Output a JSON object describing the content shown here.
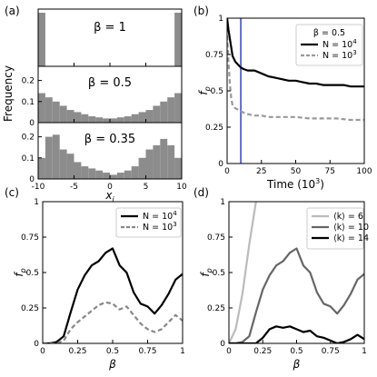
{
  "panel_labels": [
    "(a)",
    "(b)",
    "(c)",
    "(d)"
  ],
  "chart_data": [
    {
      "panel": "(a)",
      "type": "bar",
      "ylabel": "Frequency",
      "xlabel": "x",
      "xlabel_sub": "i",
      "xlim": [
        -10,
        10
      ],
      "xticks": [
        "-10",
        "-5",
        "0",
        "5",
        "10"
      ],
      "grid": false,
      "subplots": [
        {
          "annotation": "β = 1",
          "ylim": [
            0,
            0.5
          ],
          "yticks": [],
          "bins": [
            -10,
            -9,
            9,
            10
          ],
          "values": [
            0.5,
            0.0,
            0.5
          ]
        },
        {
          "annotation": "β = 0.5",
          "ylim": [
            0,
            0.25
          ],
          "yticks": [
            "0",
            "0.1",
            "0.2"
          ],
          "bins": [
            -10,
            -9,
            -8,
            -7,
            -6,
            -5,
            -4,
            -3,
            -2,
            -1,
            0,
            1,
            2,
            3,
            4,
            5,
            6,
            7,
            8,
            9,
            10
          ],
          "values": [
            0.14,
            0.12,
            0.1,
            0.08,
            0.06,
            0.05,
            0.04,
            0.03,
            0.025,
            0.02,
            0.02,
            0.025,
            0.03,
            0.04,
            0.05,
            0.06,
            0.08,
            0.1,
            0.12,
            0.14
          ]
        },
        {
          "annotation": "β = 0.35",
          "ylim": [
            0,
            0.25
          ],
          "yticks": [
            "0",
            "0.1",
            "0.2"
          ],
          "bins": [
            -10,
            -9,
            -8,
            -7,
            -6,
            -5,
            -4,
            -3,
            -2,
            -1,
            0,
            1,
            2,
            3,
            4,
            5,
            6,
            7,
            8,
            9,
            10
          ],
          "values": [
            0.1,
            0.2,
            0.21,
            0.14,
            0.12,
            0.08,
            0.06,
            0.05,
            0.04,
            0.03,
            0.02,
            0.03,
            0.04,
            0.06,
            0.1,
            0.14,
            0.16,
            0.19,
            0.16,
            0.1
          ]
        }
      ]
    },
    {
      "panel": "(b)",
      "type": "line",
      "xlabel": "Time (10",
      "xlabel_sup": "3",
      "xlabel_end": ")",
      "ylabel": "f",
      "ylabel_sub": "p",
      "xlim": [
        0,
        100
      ],
      "ylim": [
        0,
        1
      ],
      "xticks": [
        "0",
        "25",
        "50",
        "75",
        "100"
      ],
      "yticks": [
        "0",
        "0.25",
        "0.5",
        "0.75",
        "1"
      ],
      "legend_title": "β = 0.5",
      "legend": "top-right",
      "vline_x": 10,
      "vline_color": "#5b6bd8",
      "series": [
        {
          "name": "N = 10",
          "name_sup": "4",
          "color": "#000000",
          "dash": "solid",
          "x": [
            0,
            1,
            2,
            3,
            4,
            6,
            8,
            10,
            12,
            15,
            20,
            25,
            30,
            35,
            40,
            45,
            50,
            55,
            60,
            65,
            70,
            75,
            80,
            85,
            90,
            95,
            100
          ],
          "y": [
            1.0,
            0.92,
            0.86,
            0.8,
            0.74,
            0.7,
            0.68,
            0.66,
            0.65,
            0.64,
            0.64,
            0.62,
            0.6,
            0.59,
            0.58,
            0.57,
            0.57,
            0.56,
            0.55,
            0.55,
            0.54,
            0.54,
            0.54,
            0.54,
            0.53,
            0.53,
            0.53
          ]
        },
        {
          "name": "N = 10",
          "name_sup": "3",
          "color": "#999999",
          "dash": "dashed",
          "x": [
            0,
            1,
            2,
            3,
            4,
            6,
            8,
            10,
            12,
            15,
            20,
            25,
            30,
            40,
            50,
            60,
            70,
            80,
            90,
            100
          ],
          "y": [
            0.88,
            0.7,
            0.55,
            0.45,
            0.4,
            0.38,
            0.37,
            0.36,
            0.35,
            0.34,
            0.33,
            0.33,
            0.32,
            0.32,
            0.32,
            0.31,
            0.31,
            0.31,
            0.3,
            0.3
          ]
        }
      ]
    },
    {
      "panel": "(c)",
      "type": "line",
      "xlabel": "β",
      "ylabel": "f",
      "ylabel_sub": "p",
      "xlim": [
        0,
        1
      ],
      "ylim": [
        0,
        1
      ],
      "xticks": [
        "0",
        "0.25",
        "0.5",
        "0.75",
        "1"
      ],
      "yticks": [
        "0",
        "0.25",
        "0.5",
        "0.75",
        "1"
      ],
      "legend": "top-right",
      "series": [
        {
          "name": "N = 10",
          "name_sup": "4",
          "color": "#000000",
          "dash": "solid",
          "x": [
            0,
            0.05,
            0.1,
            0.15,
            0.2,
            0.25,
            0.3,
            0.35,
            0.4,
            0.45,
            0.5,
            0.55,
            0.6,
            0.65,
            0.7,
            0.75,
            0.8,
            0.85,
            0.9,
            0.95,
            1.0
          ],
          "y": [
            0,
            0,
            0.01,
            0.05,
            0.22,
            0.38,
            0.48,
            0.55,
            0.58,
            0.64,
            0.67,
            0.55,
            0.5,
            0.36,
            0.28,
            0.26,
            0.21,
            0.27,
            0.35,
            0.45,
            0.49
          ]
        },
        {
          "name": "N = 10",
          "name_sup": "3",
          "color": "#888888",
          "dash": "dashed",
          "x": [
            0,
            0.05,
            0.1,
            0.15,
            0.2,
            0.25,
            0.3,
            0.35,
            0.4,
            0.45,
            0.5,
            0.55,
            0.6,
            0.65,
            0.7,
            0.75,
            0.8,
            0.85,
            0.9,
            0.95,
            1.0
          ],
          "y": [
            0,
            0,
            0,
            0.02,
            0.1,
            0.15,
            0.19,
            0.23,
            0.27,
            0.29,
            0.28,
            0.24,
            0.26,
            0.2,
            0.14,
            0.1,
            0.08,
            0.1,
            0.15,
            0.2,
            0.16
          ]
        }
      ]
    },
    {
      "panel": "(d)",
      "type": "line",
      "xlabel": "β",
      "ylabel": "f",
      "ylabel_sub": "p",
      "xlim": [
        0,
        1
      ],
      "ylim": [
        0,
        1
      ],
      "xticks": [
        "0",
        "0.25",
        "0.5",
        "0.75",
        "1"
      ],
      "yticks": [
        "0",
        "0.25",
        "0.5",
        "0.75",
        "1"
      ],
      "legend": "top-right",
      "series": [
        {
          "name": "⟨k⟩ = 6",
          "color": "#bbbbbb",
          "dash": "solid",
          "x": [
            0,
            0.05,
            0.1,
            0.15,
            0.2
          ],
          "y": [
            0,
            0.1,
            0.35,
            0.7,
            1.0
          ]
        },
        {
          "name": "⟨k⟩ = 10",
          "color": "#666666",
          "dash": "solid",
          "x": [
            0,
            0.05,
            0.1,
            0.15,
            0.2,
            0.25,
            0.3,
            0.35,
            0.4,
            0.45,
            0.5,
            0.55,
            0.6,
            0.65,
            0.7,
            0.75,
            0.8,
            0.85,
            0.9,
            0.95,
            1.0
          ],
          "y": [
            0,
            0,
            0.01,
            0.05,
            0.22,
            0.38,
            0.48,
            0.55,
            0.58,
            0.64,
            0.67,
            0.55,
            0.5,
            0.36,
            0.28,
            0.26,
            0.21,
            0.27,
            0.35,
            0.45,
            0.49
          ]
        },
        {
          "name": "⟨k⟩ = 14",
          "color": "#000000",
          "dash": "solid",
          "x": [
            0,
            0.1,
            0.2,
            0.25,
            0.3,
            0.35,
            0.4,
            0.45,
            0.5,
            0.55,
            0.6,
            0.65,
            0.7,
            0.75,
            0.8,
            0.85,
            0.9,
            0.95,
            1.0
          ],
          "y": [
            0,
            0,
            0,
            0.04,
            0.1,
            0.12,
            0.11,
            0.12,
            0.1,
            0.08,
            0.09,
            0.05,
            0.04,
            0.02,
            0.0,
            0.01,
            0.03,
            0.06,
            0.03
          ]
        }
      ]
    }
  ]
}
